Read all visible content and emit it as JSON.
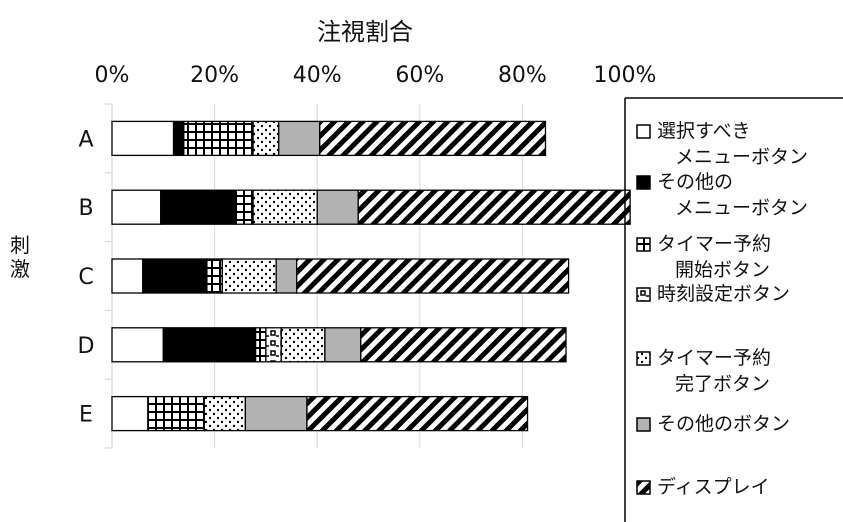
{
  "chart_data": {
    "type": "bar",
    "orientation": "horizontal",
    "stacked": true,
    "title": "注視割合",
    "ylabel": "刺激",
    "categories": [
      "A",
      "B",
      "C",
      "D",
      "E"
    ],
    "x_ticks": [
      "0%",
      "20%",
      "40%",
      "60%",
      "80%",
      "100%"
    ],
    "xlim": [
      0,
      100
    ],
    "grid": true,
    "legend_position": "right",
    "series": [
      {
        "name": "選択すべき\nメニューボタン",
        "pattern": "white",
        "values": [
          12,
          9.5,
          6,
          10,
          7
        ]
      },
      {
        "name": "その他の\nメニューボタン",
        "pattern": "black",
        "values": [
          2,
          14.5,
          12.5,
          18,
          0
        ]
      },
      {
        "name": "タイマー予約\n開始ボタン",
        "pattern": "grid",
        "values": [
          13.5,
          3.5,
          3,
          2,
          11
        ]
      },
      {
        "name": "時刻設定ボタン",
        "pattern": "checker",
        "values": [
          0,
          0,
          0,
          3,
          0
        ]
      },
      {
        "name": "タイマー予約\n完了ボタン",
        "pattern": "dots",
        "values": [
          5,
          12.5,
          10.5,
          8.5,
          8
        ]
      },
      {
        "name": "その他のボタン",
        "pattern": "gray",
        "values": [
          8,
          8,
          4,
          7,
          12
        ]
      },
      {
        "name": "ディスプレイ",
        "pattern": "diagonal",
        "values": [
          44,
          53,
          53,
          40,
          43
        ]
      }
    ]
  },
  "colors": {
    "black": "#000000",
    "gray": "#b3b3b3",
    "white": "#ffffff",
    "grid": "#d9d9d9"
  }
}
